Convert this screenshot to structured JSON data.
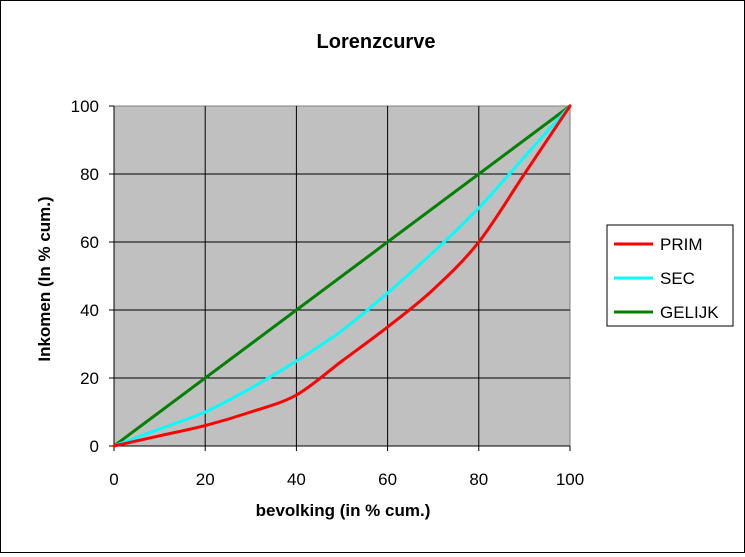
{
  "chart_data": {
    "type": "line",
    "title": "Lorenzcurve",
    "xlabel": "bevolking (in % cum.)",
    "ylabel": "Inkomen (In % cum.)",
    "xlim": [
      0,
      100
    ],
    "ylim": [
      0,
      100
    ],
    "xticks": [
      "0",
      "20",
      "40",
      "60",
      "80",
      "100"
    ],
    "yticks": [
      "0",
      "20",
      "40",
      "60",
      "80",
      "100"
    ],
    "grid": true,
    "plot_background": "#c0c0c0",
    "legend_position": "right",
    "series": [
      {
        "name": "PRIM",
        "color": "#ff0000",
        "x": [
          0,
          10,
          20,
          30,
          40,
          50,
          60,
          70,
          80,
          90,
          100
        ],
        "y": [
          0,
          3,
          6,
          10,
          15,
          25,
          35,
          46,
          60,
          80,
          100
        ]
      },
      {
        "name": "SEC",
        "color": "#00ffff",
        "x": [
          0,
          10,
          20,
          30,
          40,
          50,
          60,
          70,
          80,
          90,
          100
        ],
        "y": [
          0,
          5,
          10,
          17,
          25,
          34,
          45,
          57,
          70,
          85,
          100
        ]
      },
      {
        "name": "GELIJK",
        "color": "#008000",
        "x": [
          0,
          100
        ],
        "y": [
          0,
          100
        ]
      }
    ]
  }
}
